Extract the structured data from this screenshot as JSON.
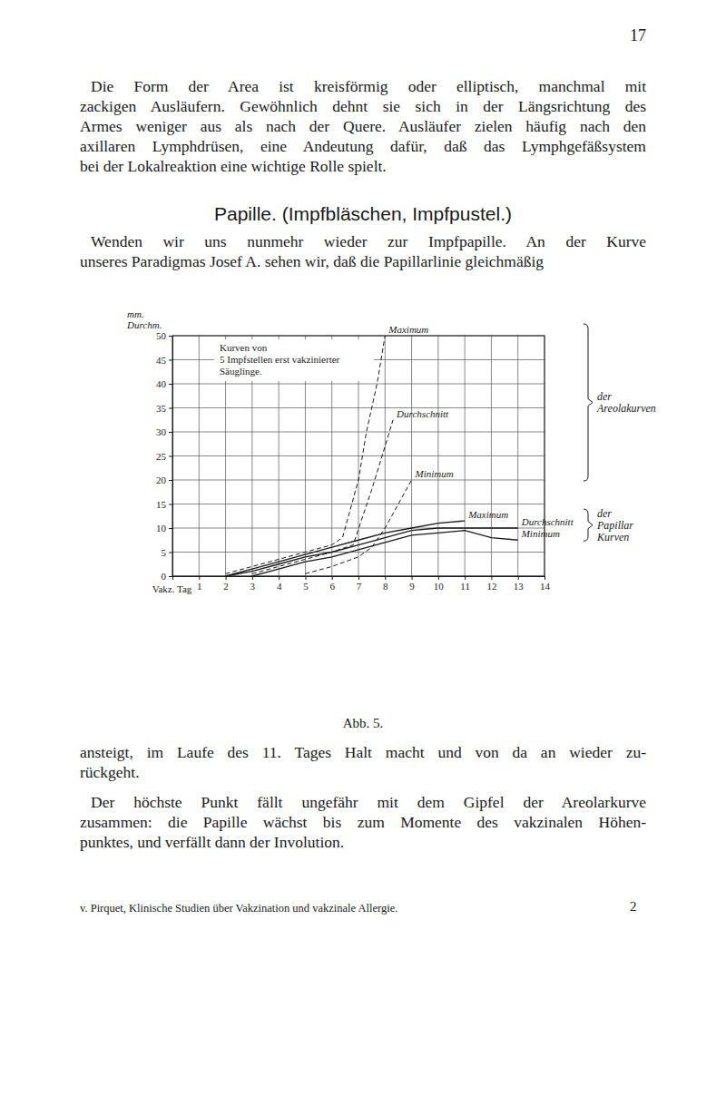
{
  "page": {
    "page_number": "17",
    "paragraphs_before": [
      [
        "Die Form der Area ist kreisförmig oder elliptisch, manchmal mit",
        "zackigen Ausläufern. Gewöhnlich dehnt sie sich in der Längsrichtung des",
        "Armes weniger aus als nach der Quere. Ausläufer zielen häufig nach den",
        "axillaren Lymphdrüsen, eine Andeutung dafür, daß das Lymphgefäßsystem",
        "bei der Lokalreaktion eine wichtige Rolle spielt."
      ]
    ],
    "heading": "Papille. (Impfbläschen, Impfpustel.)",
    "paragraphs_mid": [
      [
        "Wenden wir uns nunmehr wieder zur Impfpapille. An der Kurve",
        "unseres Paradigmas Josef A. sehen wir, daß die Papillarlinie gleichmäßig"
      ]
    ],
    "paragraphs_after": [
      [
        "ansteigt, im Laufe des 11. Tages Halt macht und von da an wieder zu-",
        "rückgeht."
      ],
      [
        "Der höchste Punkt fällt ungefähr mit dem Gipfel der Areolarkurve",
        "zusammen: die Papille wächst bis zum Momente des vakzinalen Höhen-",
        "punktes, und verfällt dann der Involution."
      ]
    ],
    "footer": {
      "text": "v. Pirquet, Klinische Studien über Vakzination und vakzinale Allergie.",
      "signature": "2"
    }
  },
  "chart_data": {
    "type": "line",
    "title": "Abb. 5.",
    "subtitle": [
      "Kurven von",
      "5 Impfstellen erst vakzinierter",
      "Säuglinge."
    ],
    "xlabel": "Vakz. Tag",
    "ylabel": "mm. Durchm.",
    "xlim": [
      0,
      14
    ],
    "xticks": [
      1,
      2,
      3,
      4,
      5,
      6,
      7,
      8,
      9,
      10,
      11,
      12,
      13,
      14
    ],
    "ylim": [
      0,
      50
    ],
    "yticks": [
      0,
      5,
      10,
      15,
      20,
      25,
      30,
      35,
      40,
      45,
      50
    ],
    "grid": true,
    "annotations": [
      {
        "text": "der Areolakurven"
      },
      {
        "text": "der Papillar Kurven"
      }
    ],
    "series": [
      {
        "name": "Maximum",
        "color": "#1a1a1a",
        "line_style": "dashed",
        "x": [
          2,
          3,
          4,
          5,
          6,
          6.4,
          7,
          7.3,
          7.7,
          8
        ],
        "values": [
          0.5,
          2,
          3.5,
          5,
          6.5,
          8,
          20,
          30,
          40,
          50
        ]
      },
      {
        "name": "Durchschnitt",
        "color": "#1a1a1a",
        "line_style": "dashed",
        "x": [
          3,
          4,
          5,
          6,
          6.8,
          7.5,
          8,
          8.3
        ],
        "values": [
          0.5,
          2,
          3.5,
          5,
          6.5,
          18,
          27,
          32.5
        ]
      },
      {
        "name": "Minimum",
        "color": "#1a1a1a",
        "line_style": "dashed",
        "x": [
          5,
          6,
          7,
          7.5,
          8,
          8.5,
          9
        ],
        "values": [
          0.5,
          2,
          4,
          6,
          10,
          15,
          20
        ]
      },
      {
        "name": "Maximum",
        "color": "#1a1a1a",
        "line_style": "solid",
        "x": [
          2,
          3,
          4,
          5,
          6,
          7,
          8,
          9,
          10,
          11
        ],
        "values": [
          0,
          1.5,
          3,
          4.5,
          6,
          7.5,
          9,
          10,
          11,
          11.5
        ]
      },
      {
        "name": "Durchschnitt",
        "color": "#1a1a1a",
        "line_style": "solid",
        "x": [
          2,
          3,
          4,
          5,
          6,
          7,
          8,
          9,
          10,
          11,
          12,
          13
        ],
        "values": [
          0,
          1,
          2.5,
          4,
          5,
          6.5,
          8,
          9.5,
          10,
          10,
          10,
          10
        ]
      },
      {
        "name": "Minimum",
        "color": "#1a1a1a",
        "line_style": "solid",
        "x": [
          3,
          4,
          5,
          6,
          7,
          8,
          9,
          10,
          11,
          12,
          13
        ],
        "values": [
          0,
          1.5,
          3,
          4,
          5.5,
          7,
          8.5,
          9,
          9.5,
          8,
          7.5
        ]
      }
    ]
  }
}
